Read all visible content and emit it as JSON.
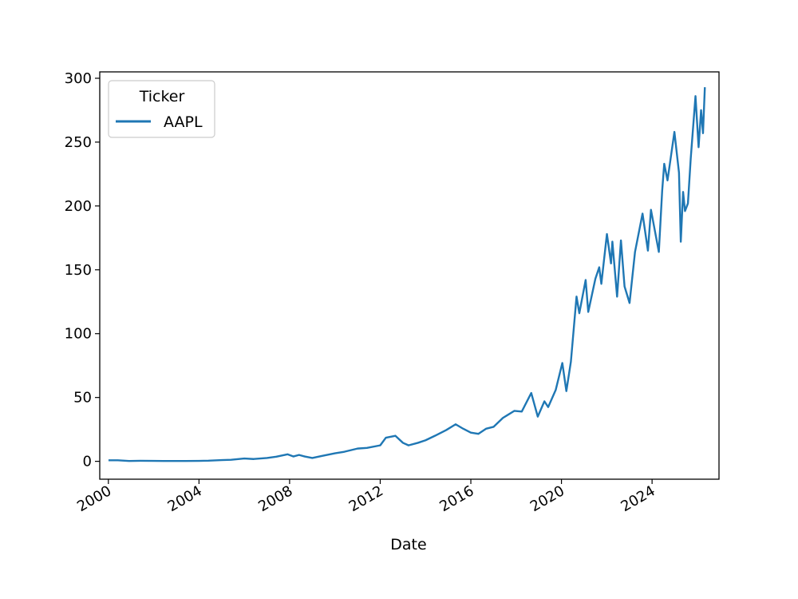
{
  "chart_data": {
    "type": "line",
    "title": "",
    "xlabel": "Date",
    "ylabel": "",
    "x_type": "date",
    "xlim": [
      "1999-08-15",
      "2026-12-15"
    ],
    "ylim": [
      -14,
      305
    ],
    "x_ticks": [
      {
        "date": "2000-01-01",
        "label": "2000"
      },
      {
        "date": "2004-01-01",
        "label": "2004"
      },
      {
        "date": "2008-01-01",
        "label": "2008"
      },
      {
        "date": "2012-01-01",
        "label": "2012"
      },
      {
        "date": "2016-01-01",
        "label": "2016"
      },
      {
        "date": "2020-01-01",
        "label": "2020"
      },
      {
        "date": "2024-01-01",
        "label": "2024"
      }
    ],
    "y_ticks": [
      0,
      50,
      100,
      150,
      200,
      250,
      300
    ],
    "grid": false,
    "legend": {
      "title": "Ticker",
      "location": "upper-left"
    },
    "series": [
      {
        "name": "AAPL",
        "color": "#1f77b4",
        "points": [
          [
            "2000-01-03",
            0.8
          ],
          [
            "2000-06-01",
            0.8
          ],
          [
            "2000-12-01",
            0.3
          ],
          [
            "2001-06-01",
            0.4
          ],
          [
            "2002-01-01",
            0.35
          ],
          [
            "2002-06-01",
            0.3
          ],
          [
            "2003-01-01",
            0.25
          ],
          [
            "2003-06-01",
            0.3
          ],
          [
            "2004-01-01",
            0.35
          ],
          [
            "2004-06-01",
            0.5
          ],
          [
            "2005-01-01",
            1.0
          ],
          [
            "2005-06-01",
            1.2
          ],
          [
            "2006-01-01",
            2.2
          ],
          [
            "2006-06-01",
            1.8
          ],
          [
            "2007-01-01",
            2.6
          ],
          [
            "2007-06-01",
            3.6
          ],
          [
            "2007-12-01",
            5.5
          ],
          [
            "2008-03-01",
            3.8
          ],
          [
            "2008-06-01",
            5.0
          ],
          [
            "2008-09-01",
            3.8
          ],
          [
            "2009-01-01",
            2.6
          ],
          [
            "2009-06-01",
            4.2
          ],
          [
            "2010-01-01",
            6.3
          ],
          [
            "2010-06-01",
            7.5
          ],
          [
            "2011-01-01",
            10.0
          ],
          [
            "2011-06-01",
            10.5
          ],
          [
            "2012-01-01",
            12.5
          ],
          [
            "2012-04-01",
            18.5
          ],
          [
            "2012-09-01",
            20.0
          ],
          [
            "2013-01-01",
            14.5
          ],
          [
            "2013-04-01",
            12.5
          ],
          [
            "2013-09-01",
            14.5
          ],
          [
            "2014-01-01",
            16.5
          ],
          [
            "2014-06-01",
            20.0
          ],
          [
            "2014-12-01",
            24.5
          ],
          [
            "2015-05-01",
            29.0
          ],
          [
            "2015-09-01",
            25.5
          ],
          [
            "2016-01-01",
            22.5
          ],
          [
            "2016-05-01",
            21.5
          ],
          [
            "2016-09-01",
            25.5
          ],
          [
            "2017-01-01",
            27.0
          ],
          [
            "2017-06-01",
            34.0
          ],
          [
            "2017-12-01",
            39.5
          ],
          [
            "2018-04-01",
            39.0
          ],
          [
            "2018-09-01",
            53.5
          ],
          [
            "2018-12-15",
            35.0
          ],
          [
            "2019-04-01",
            47.0
          ],
          [
            "2019-06-01",
            42.5
          ],
          [
            "2019-10-01",
            56.0
          ],
          [
            "2020-01-15",
            77.0
          ],
          [
            "2020-03-20",
            55.0
          ],
          [
            "2020-06-01",
            78.0
          ],
          [
            "2020-08-31",
            129.0
          ],
          [
            "2020-10-15",
            116.0
          ],
          [
            "2021-01-25",
            142.0
          ],
          [
            "2021-03-08",
            117.0
          ],
          [
            "2021-07-01",
            143.0
          ],
          [
            "2021-09-01",
            152.0
          ],
          [
            "2021-10-05",
            139.0
          ],
          [
            "2022-01-03",
            178.0
          ],
          [
            "2022-03-10",
            155.0
          ],
          [
            "2022-04-01",
            172.0
          ],
          [
            "2022-06-16",
            129.0
          ],
          [
            "2022-08-17",
            173.0
          ],
          [
            "2022-10-14",
            137.0
          ],
          [
            "2023-01-03",
            124.0
          ],
          [
            "2023-04-01",
            164.0
          ],
          [
            "2023-07-31",
            194.0
          ],
          [
            "2023-10-26",
            165.0
          ],
          [
            "2023-12-14",
            197.0
          ],
          [
            "2024-04-19",
            164.0
          ],
          [
            "2024-06-12",
            212.0
          ],
          [
            "2024-07-15",
            233.0
          ],
          [
            "2024-09-06",
            220.0
          ],
          [
            "2024-12-26",
            258.0
          ],
          [
            "2025-03-10",
            226.0
          ],
          [
            "2025-04-08",
            172.0
          ],
          [
            "2025-05-15",
            211.0
          ],
          [
            "2025-06-15",
            196.0
          ],
          [
            "2025-08-01",
            202.0
          ],
          [
            "2025-09-15",
            237.0
          ],
          [
            "2025-12-01",
            286.0
          ],
          [
            "2026-01-20",
            246.0
          ],
          [
            "2026-03-01",
            275.0
          ],
          [
            "2026-04-01",
            257.0
          ],
          [
            "2026-05-01",
            293.0
          ]
        ]
      }
    ]
  }
}
